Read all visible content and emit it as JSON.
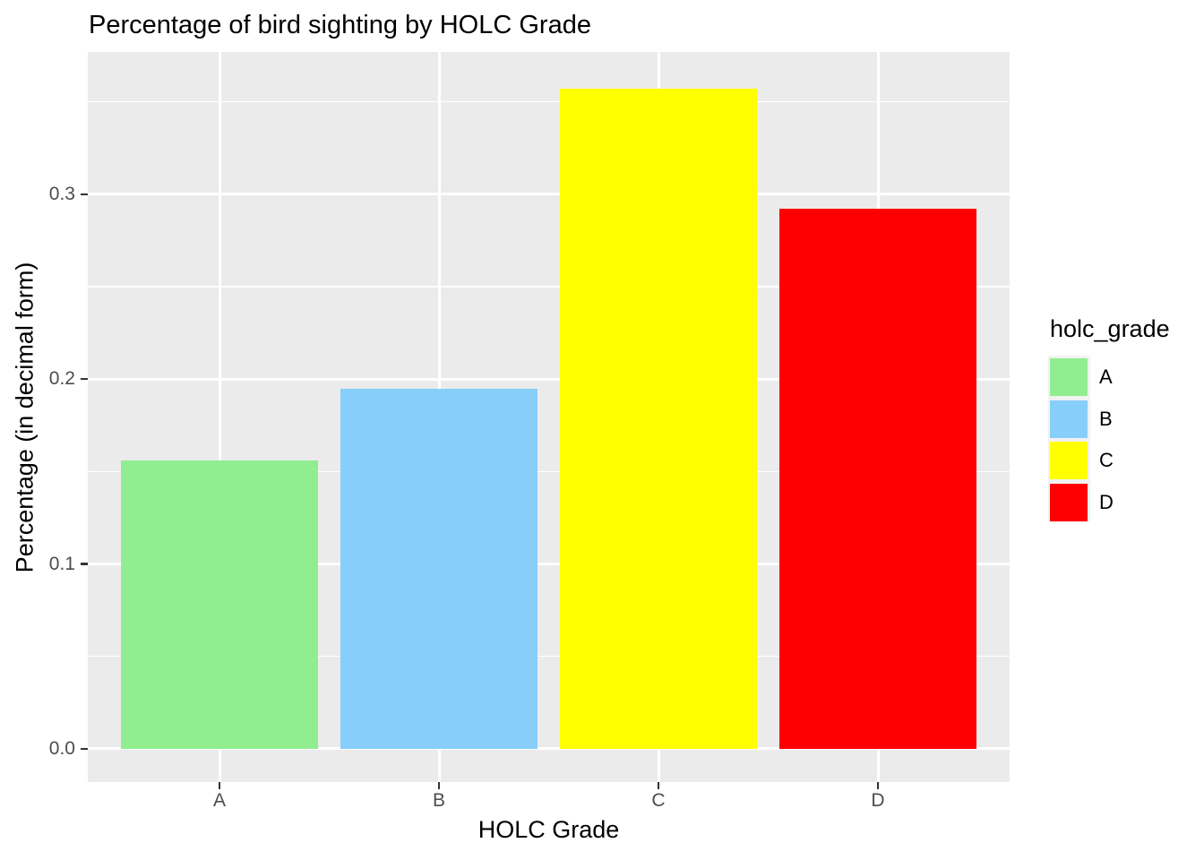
{
  "chart_data": {
    "type": "bar",
    "title": "Percentage of bird sighting by HOLC Grade",
    "xlabel": "HOLC Grade",
    "ylabel": "Percentage (in decimal form)",
    "categories": [
      "A",
      "B",
      "C",
      "D"
    ],
    "values": [
      0.156,
      0.195,
      0.357,
      0.292
    ],
    "bar_colors": [
      "#90EE90",
      "#87CEFA",
      "#FFFF00",
      "#FF0000"
    ],
    "y_ticks": {
      "values": [
        0.0,
        0.1,
        0.2,
        0.3
      ],
      "labels": [
        "0.0",
        "0.1",
        "0.2",
        "0.3"
      ]
    },
    "y_minor_ticks": [
      0.05,
      0.15,
      0.25,
      0.35
    ],
    "y_range": [
      -0.018,
      0.377
    ],
    "x_range": [
      0.4,
      4.6
    ],
    "bar_rel_width": 0.9,
    "grid": true,
    "legend": {
      "title": "holc_grade",
      "position": "right",
      "entries": [
        {
          "label": "A",
          "color": "#90EE90"
        },
        {
          "label": "B",
          "color": "#87CEFA"
        },
        {
          "label": "C",
          "color": "#FFFF00"
        },
        {
          "label": "D",
          "color": "#FF0000"
        }
      ]
    },
    "style": {
      "panel_bg": "#EBEBEB",
      "grid_color": "#FFFFFF",
      "tick_label_color": "#4D4D4D",
      "tick_mark_color": "#333333",
      "title_color": "#000000"
    }
  }
}
